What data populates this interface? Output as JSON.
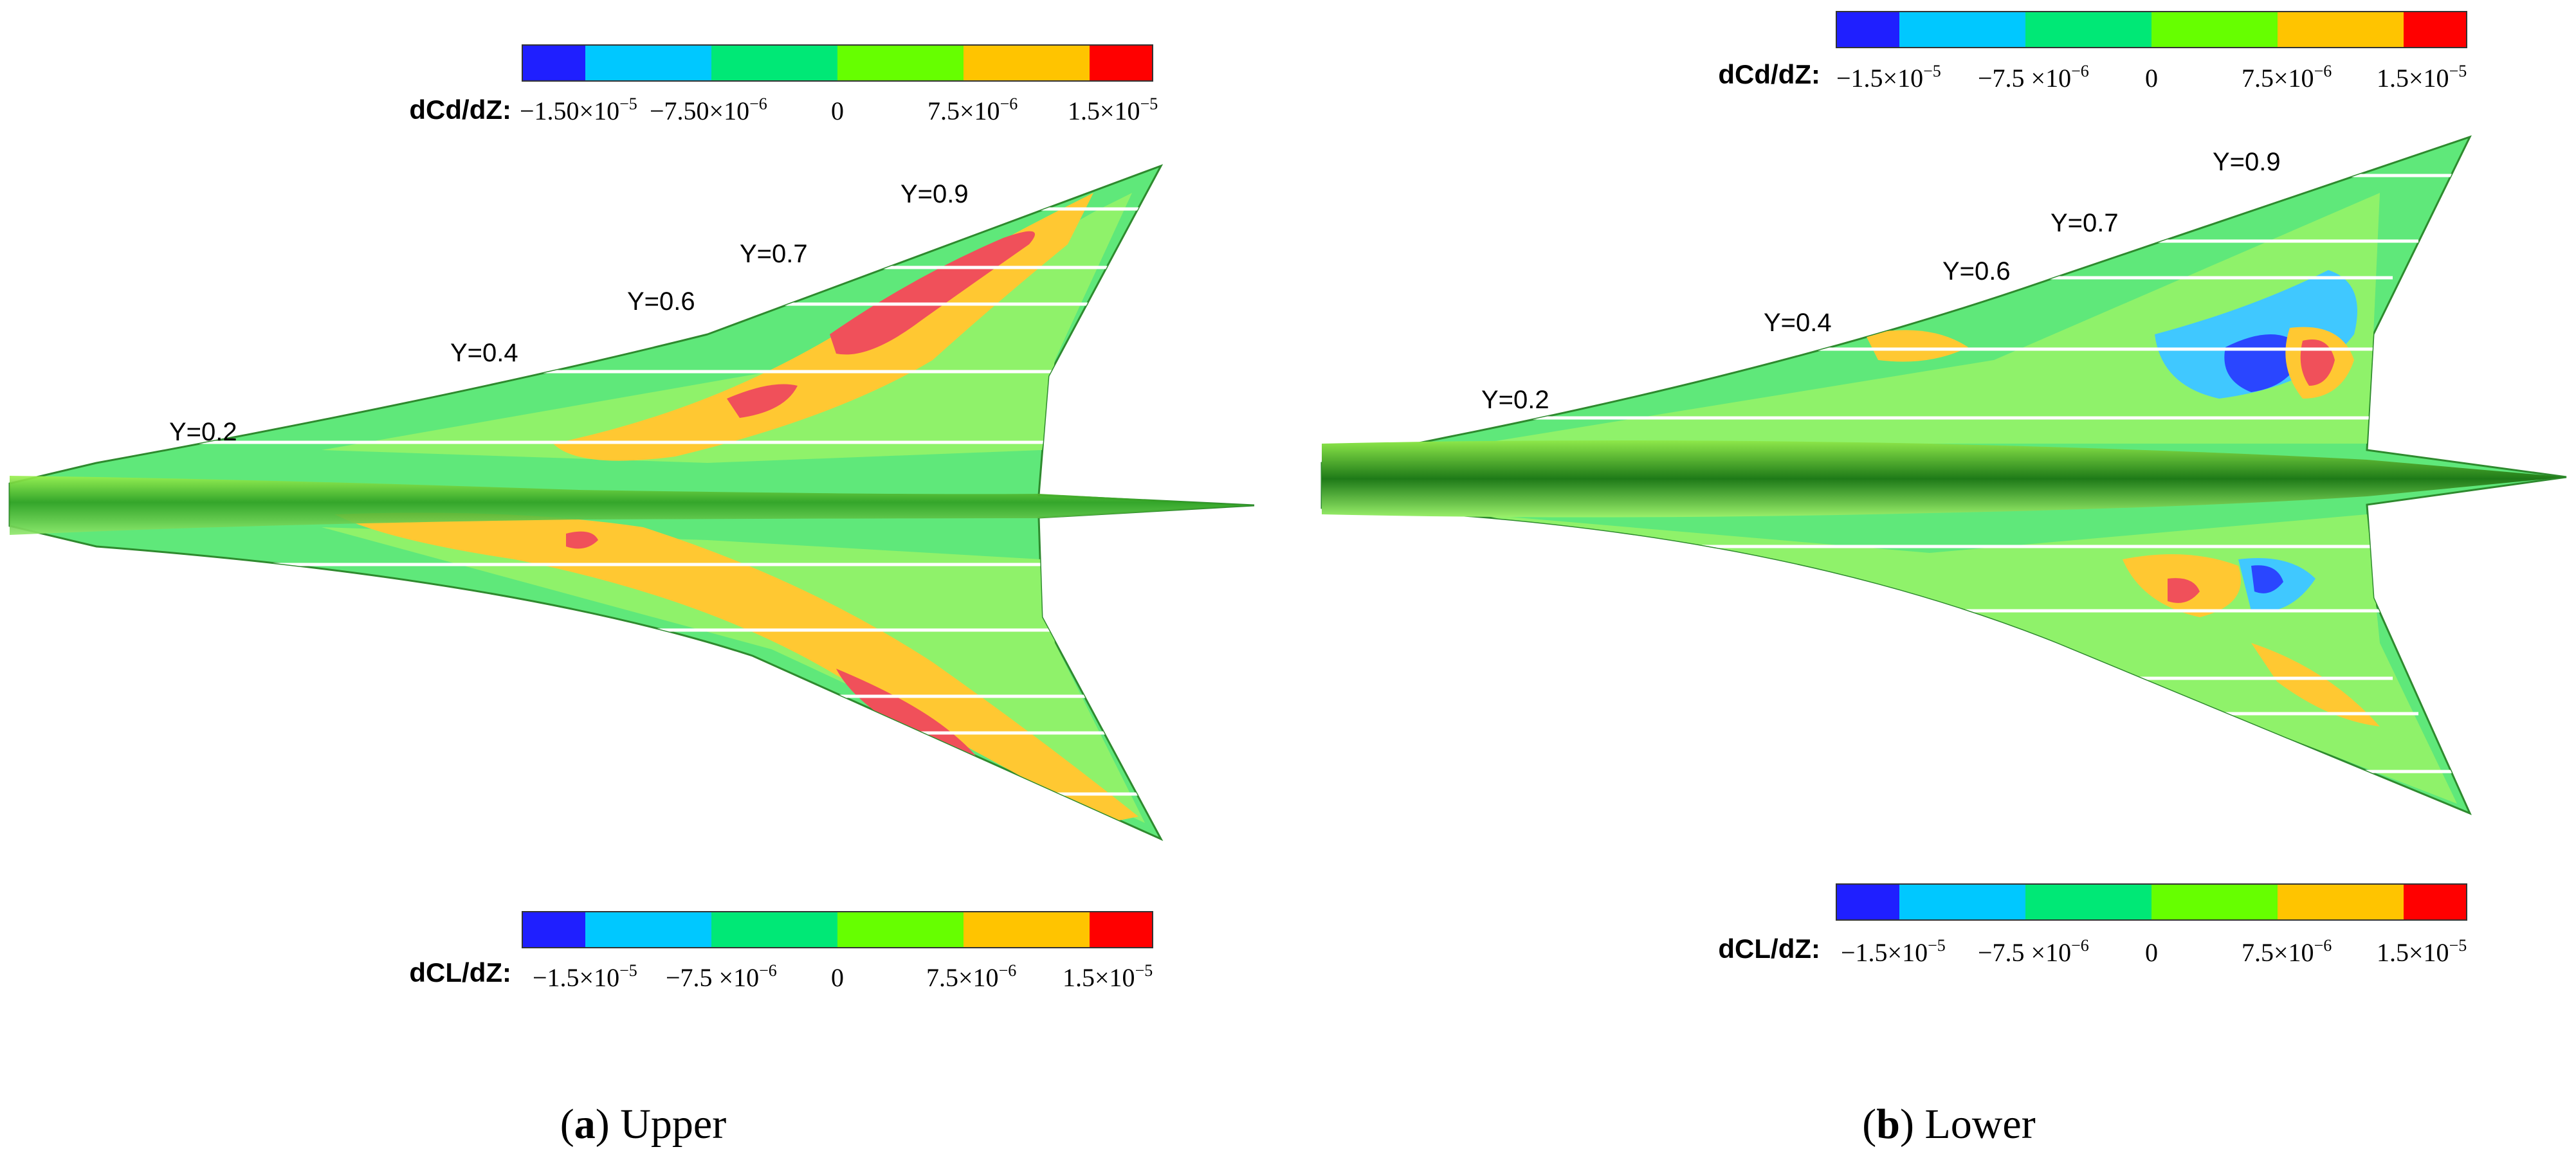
{
  "colorbar_colors": [
    "#1f1fff",
    "#00c8ff",
    "#00e876",
    "#66ff00",
    "#ffc400",
    "#ff0000"
  ],
  "surface_colors": {
    "base": "#5fe87a",
    "light": "#8ff26a",
    "yellow": "#ffc832",
    "red": "#f0505a",
    "blue": "#2a46ff",
    "cyan": "#40c8ff",
    "fuselage": "#3fbf2a",
    "fuselage_dark": "#1e7a18",
    "station_line": "#ffffff"
  },
  "panels": [
    {
      "id": "upper",
      "colorbar_top": {
        "label": "dCd/dZ:",
        "ticks": [
          {
            "m": "−1.50×10",
            "e": "−5"
          },
          {
            "m": "−7.50×10",
            "e": "−6"
          },
          {
            "m": "0",
            "e": ""
          },
          {
            "m": "7.5×10",
            "e": "−6"
          },
          {
            "m": "1.5×10",
            "e": "−5"
          }
        ]
      },
      "colorbar_bottom": {
        "label": "dCL/dZ:",
        "ticks": [
          {
            "m": "−1.5×10",
            "e": "−5"
          },
          {
            "m": "−7.5 ×10",
            "e": "−6"
          },
          {
            "m": "0",
            "e": ""
          },
          {
            "m": "7.5×10",
            "e": "−6"
          },
          {
            "m": "1.5×10",
            "e": "−5"
          }
        ]
      },
      "stations": [
        "Y=0.2",
        "Y=0.4",
        "Y=0.6",
        "Y=0.7",
        "Y=0.9"
      ],
      "caption": {
        "letter": "a",
        "text": "Upper"
      }
    },
    {
      "id": "lower",
      "colorbar_top": {
        "label": "dCd/dZ:",
        "ticks": [
          {
            "m": "−1.5×10",
            "e": "−5"
          },
          {
            "m": "−7.5 ×10",
            "e": "−6"
          },
          {
            "m": "0",
            "e": ""
          },
          {
            "m": "7.5×10",
            "e": "−6"
          },
          {
            "m": "1.5×10",
            "e": "−5"
          }
        ]
      },
      "colorbar_bottom": {
        "label": "dCL/dZ:",
        "ticks": [
          {
            "m": "−1.5×10",
            "e": "−5"
          },
          {
            "m": "−7.5 ×10",
            "e": "−6"
          },
          {
            "m": "0",
            "e": ""
          },
          {
            "m": "7.5×10",
            "e": "−6"
          },
          {
            "m": "1.5×10",
            "e": "−5"
          }
        ]
      },
      "stations": [
        "Y=0.2",
        "Y=0.4",
        "Y=0.6",
        "Y=0.7",
        "Y=0.9"
      ],
      "caption": {
        "letter": "b",
        "text": "Lower"
      }
    }
  ]
}
